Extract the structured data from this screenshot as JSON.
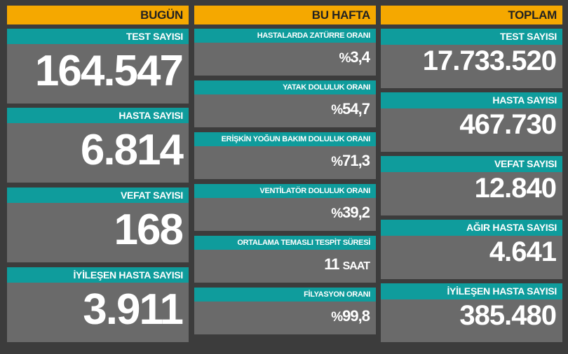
{
  "headers": {
    "today": "BUGÜN",
    "week": "BU HAFTA",
    "total": "TOPLAM"
  },
  "today": [
    {
      "label": "TEST SAYISI",
      "value": "164.547"
    },
    {
      "label": "HASTA SAYISI",
      "value": "6.814"
    },
    {
      "label": "VEFAT SAYISI",
      "value": "168"
    },
    {
      "label": "İYİLEŞEN HASTA SAYISI",
      "value": "3.911"
    }
  ],
  "week": [
    {
      "label": "HASTALARDA ZATÜRRE ORANI",
      "prefix": "%",
      "value": "3,4",
      "unit": ""
    },
    {
      "label": "YATAK DOLULUK ORANI",
      "prefix": "%",
      "value": "54,7",
      "unit": ""
    },
    {
      "label": "ERİŞKİN YOĞUN BAKIM DOLULUK ORANI",
      "prefix": "%",
      "value": "71,3",
      "unit": ""
    },
    {
      "label": "VENTİLATÖR DOLULUK ORANI",
      "prefix": "%",
      "value": "39,2",
      "unit": ""
    },
    {
      "label": "ORTALAMA TEMASLI TESPİT SÜRESİ",
      "prefix": "",
      "value": "11",
      "unit": "SAAT"
    },
    {
      "label": "FİLYASYON ORANI",
      "prefix": "%",
      "value": "99,8",
      "unit": ""
    }
  ],
  "total": [
    {
      "label": "TEST SAYISI",
      "value": "17.733.520"
    },
    {
      "label": "HASTA SAYISI",
      "value": "467.730"
    },
    {
      "label": "VEFAT SAYISI",
      "value": "12.840"
    },
    {
      "label": "AĞIR HASTA SAYISI",
      "value": "4.641"
    },
    {
      "label": "İYİLEŞEN HASTA SAYISI",
      "value": "385.480"
    }
  ]
}
